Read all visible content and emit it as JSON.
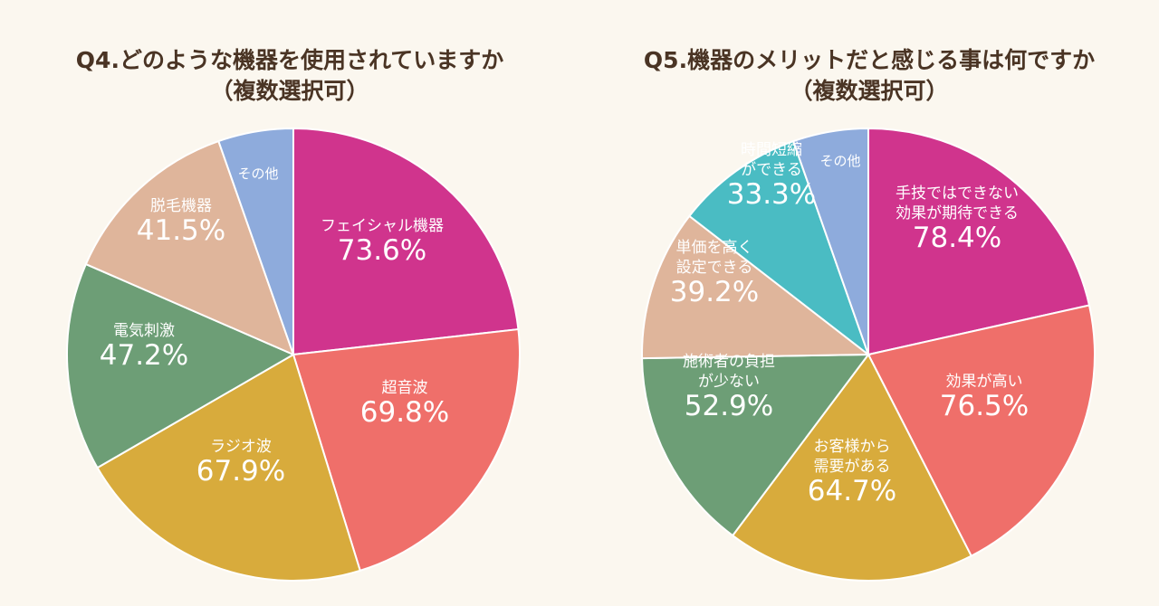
{
  "colors": {
    "magenta": "#d0348d",
    "coral": "#ef6f6a",
    "mustard": "#d8ab3c",
    "green": "#6d9e76",
    "beige": "#dfb59b",
    "blue": "#8eabdc",
    "teal": "#4abcc3",
    "background": "#fbf7ef",
    "title": "#4a3424",
    "label": "#ffffff"
  },
  "chart_data": [
    {
      "type": "pie",
      "title_line1": "Q4.どのような機器を使用されていますか",
      "title_line2": "（複数選択可）",
      "slices": [
        {
          "label": [
            "フェイシャル機器"
          ],
          "value_text": "73.6%",
          "value": 73.6,
          "color": "magenta"
        },
        {
          "label": [
            "超音波"
          ],
          "value_text": "69.8%",
          "value": 69.8,
          "color": "coral"
        },
        {
          "label": [
            "ラジオ波"
          ],
          "value_text": "67.9%",
          "value": 67.9,
          "color": "mustard"
        },
        {
          "label": [
            "電気刺激"
          ],
          "value_text": "47.2%",
          "value": 47.2,
          "color": "green"
        },
        {
          "label": [
            "脱毛機器"
          ],
          "value_text": "41.5%",
          "value": 41.5,
          "color": "beige"
        },
        {
          "label": [
            "その他"
          ],
          "value_text": "",
          "value": 17.0,
          "color": "blue"
        }
      ]
    },
    {
      "type": "pie",
      "title_line1": "Q5.機器のメリットだと感じる事は何ですか",
      "title_line2": "（複数選択可）",
      "slices": [
        {
          "label": [
            "手技ではできない",
            "効果が期待できる"
          ],
          "value_text": "78.4%",
          "value": 78.4,
          "color": "magenta"
        },
        {
          "label": [
            "効果が高い"
          ],
          "value_text": "76.5%",
          "value": 76.5,
          "color": "coral"
        },
        {
          "label": [
            "お客様から",
            "需要がある"
          ],
          "value_text": "64.7%",
          "value": 64.7,
          "color": "mustard"
        },
        {
          "label": [
            "施術者の負担",
            "が少ない"
          ],
          "value_text": "52.9%",
          "value": 52.9,
          "color": "green"
        },
        {
          "label": [
            "単価を高く",
            "設定できる"
          ],
          "value_text": "39.2%",
          "value": 39.2,
          "color": "beige"
        },
        {
          "label": [
            "時間短縮",
            "ができる"
          ],
          "value_text": "33.3%",
          "value": 33.3,
          "color": "teal"
        },
        {
          "label": [
            "その他"
          ],
          "value_text": "",
          "value": 19.6,
          "color": "blue"
        }
      ]
    }
  ]
}
